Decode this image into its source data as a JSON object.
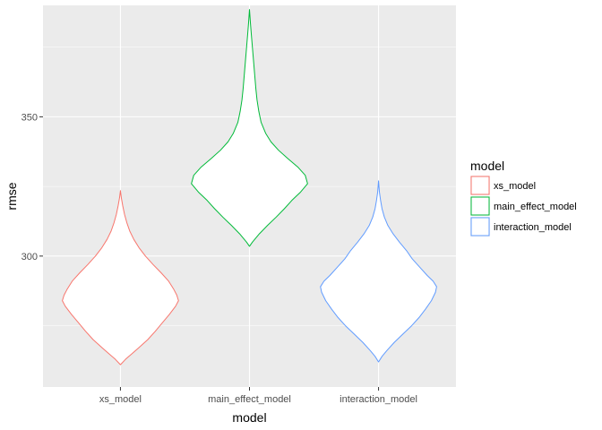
{
  "chart_data": {
    "type": "violin",
    "xlabel": "model",
    "ylabel": "rmse",
    "categories": [
      "xs_model",
      "main_effect_model",
      "interaction_model"
    ],
    "ylim": [
      253,
      390
    ],
    "yticks": [
      300,
      350
    ],
    "grid": true,
    "legend": {
      "title": "model",
      "placement": "right"
    },
    "colors": {
      "panel": "#EBEBEB",
      "grid": "#FFFFFF",
      "series": [
        "#F8766D",
        "#00BA38",
        "#619CFF"
      ]
    },
    "series": [
      {
        "name": "xs_model",
        "density": [
          [
            261.0,
            0.0
          ],
          [
            263,
            0.09
          ],
          [
            265,
            0.2
          ],
          [
            267,
            0.31
          ],
          [
            270,
            0.47
          ],
          [
            273,
            0.6
          ],
          [
            276,
            0.72
          ],
          [
            279,
            0.84
          ],
          [
            282,
            0.95
          ],
          [
            284,
            1.0
          ],
          [
            286,
            0.97
          ],
          [
            288,
            0.92
          ],
          [
            291,
            0.83
          ],
          [
            294,
            0.7
          ],
          [
            297,
            0.56
          ],
          [
            300,
            0.43
          ],
          [
            303,
            0.32
          ],
          [
            306,
            0.23
          ],
          [
            309,
            0.16
          ],
          [
            312,
            0.11
          ],
          [
            315,
            0.07
          ],
          [
            318,
            0.04
          ],
          [
            321,
            0.015
          ],
          [
            323.5,
            0.0
          ]
        ]
      },
      {
        "name": "main_effect_model",
        "density": [
          [
            303.5,
            0.0
          ],
          [
            305,
            0.05
          ],
          [
            308,
            0.17
          ],
          [
            311,
            0.31
          ],
          [
            314,
            0.46
          ],
          [
            317,
            0.6
          ],
          [
            320,
            0.73
          ],
          [
            323,
            0.88
          ],
          [
            326,
            1.0
          ],
          [
            329,
            0.96
          ],
          [
            332,
            0.83
          ],
          [
            335,
            0.66
          ],
          [
            338,
            0.5
          ],
          [
            341,
            0.37
          ],
          [
            344,
            0.28
          ],
          [
            348,
            0.2
          ],
          [
            352,
            0.16
          ],
          [
            356,
            0.13
          ],
          [
            360,
            0.11
          ],
          [
            365,
            0.09
          ],
          [
            370,
            0.07
          ],
          [
            375,
            0.05
          ],
          [
            380,
            0.03
          ],
          [
            384,
            0.015
          ],
          [
            388.5,
            0.0
          ]
        ]
      },
      {
        "name": "interaction_model",
        "density": [
          [
            262.0,
            0.0
          ],
          [
            264,
            0.06
          ],
          [
            266,
            0.14
          ],
          [
            269,
            0.27
          ],
          [
            272,
            0.42
          ],
          [
            275,
            0.57
          ],
          [
            278,
            0.7
          ],
          [
            281,
            0.81
          ],
          [
            284,
            0.91
          ],
          [
            287,
            0.98
          ],
          [
            289,
            1.0
          ],
          [
            291,
            0.94
          ],
          [
            293,
            0.84
          ],
          [
            296,
            0.71
          ],
          [
            299,
            0.58
          ],
          [
            302,
            0.48
          ],
          [
            305,
            0.36
          ],
          [
            308,
            0.25
          ],
          [
            311,
            0.16
          ],
          [
            314,
            0.1
          ],
          [
            317,
            0.06
          ],
          [
            320,
            0.035
          ],
          [
            323,
            0.015
          ],
          [
            327,
            0.0
          ]
        ]
      }
    ]
  }
}
